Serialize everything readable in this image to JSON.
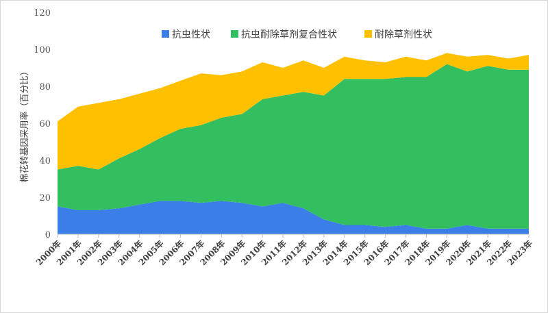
{
  "chart_data": {
    "type": "area",
    "stacked": true,
    "categories": [
      "2000年",
      "2001年",
      "2002年",
      "2003年",
      "2004年",
      "2005年",
      "2006年",
      "2007年",
      "2008年",
      "2009年",
      "2010年",
      "2011年",
      "2012年",
      "2013年",
      "2014年",
      "2015年",
      "2016年",
      "2017年",
      "2018年",
      "2019年",
      "2020年",
      "2021年",
      "2022年",
      "2023年"
    ],
    "series": [
      {
        "name": "抗虫性状",
        "color": "#3b7ee8",
        "values": [
          15,
          13,
          13,
          14,
          16,
          18,
          18,
          17,
          18,
          17,
          15,
          17,
          14,
          8,
          5,
          5,
          4,
          5,
          3,
          3,
          5,
          3,
          3,
          3
        ]
      },
      {
        "name": "抗虫耐除草剂复合性状",
        "color": "#33bf5f",
        "values": [
          20,
          24,
          22,
          27,
          30,
          34,
          39,
          42,
          45,
          48,
          58,
          58,
          63,
          67,
          79,
          79,
          80,
          80,
          82,
          89,
          83,
          88,
          86,
          86
        ]
      },
      {
        "name": "耐除草剂性状",
        "color": "#ffc000",
        "values": [
          26,
          32,
          36,
          32,
          30,
          27,
          26,
          28,
          23,
          23,
          20,
          15,
          17,
          15,
          12,
          10,
          9,
          11,
          9,
          6,
          8,
          6,
          6,
          8
        ]
      }
    ],
    "ylabel": "棉花转基因采用率（百分比）",
    "ylim": [
      0,
      120
    ],
    "yticks": [
      0,
      20,
      40,
      60,
      80,
      100,
      120
    ],
    "grid": false,
    "legend_position": "top"
  }
}
